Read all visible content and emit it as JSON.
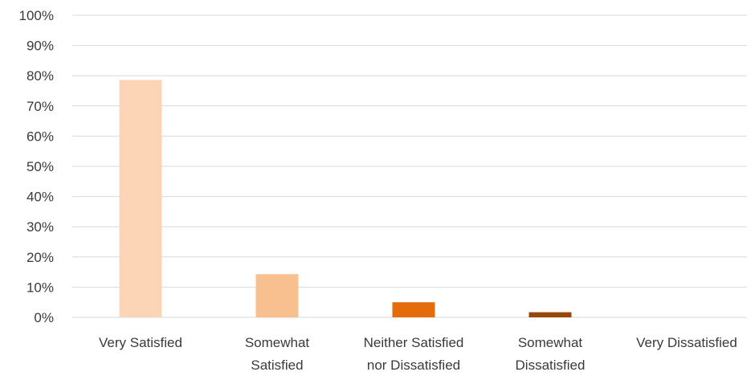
{
  "chart_data": {
    "type": "bar",
    "title": "",
    "xlabel": "",
    "ylabel": "",
    "categories": [
      [
        "Very Satisfied"
      ],
      [
        "Somewhat",
        "Satisfied"
      ],
      [
        "Neither Satisfied",
        "nor Dissatisfied"
      ],
      [
        "Somewhat",
        "Dissatisfied"
      ],
      [
        "Very Dissatisfied"
      ]
    ],
    "values": [
      78.6,
      14.3,
      5.0,
      1.7,
      0.0
    ],
    "ylim": [
      0,
      100
    ],
    "yticks": [
      0,
      10,
      20,
      30,
      40,
      50,
      60,
      70,
      80,
      90,
      100
    ],
    "ytick_suffix": "%",
    "grid": true,
    "legend": "none",
    "bar_colors": [
      "#fbd5b5",
      "#f9c08f",
      "#e46c0a",
      "#974706",
      "#6b3a1a"
    ],
    "grid_color": "#d9d9d9"
  }
}
